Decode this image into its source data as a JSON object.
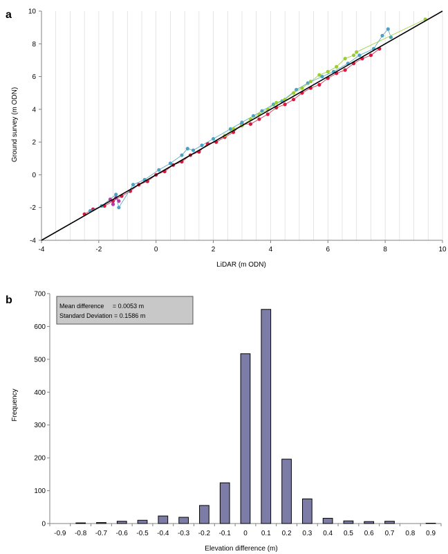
{
  "panels": {
    "a": {
      "label": "a"
    },
    "b": {
      "label": "b"
    }
  },
  "colors": {
    "red": "#d7193f",
    "blue": "#4aa3c4",
    "green": "#9acd32",
    "magenta": "#b23aa8",
    "line": "#000000",
    "bar_fill": "#7c7ca6",
    "bar_stroke": "#000000",
    "stats_box": "#c8c8c8"
  },
  "chart_data": [
    {
      "type": "scatter",
      "panel": "a",
      "title": "",
      "xlabel": "LiDAR (m ODN)",
      "ylabel": "Ground survey (m ODN)",
      "xlim": [
        -4,
        10
      ],
      "ylim": [
        -4,
        10
      ],
      "x_ticks": [
        "-4",
        "-2",
        "0",
        "2",
        "4",
        "6",
        "8",
        "10"
      ],
      "y_ticks": [
        "-4",
        "-2",
        "0",
        "2",
        "4",
        "6",
        "8",
        "10"
      ],
      "grid": "vertical",
      "reference_line": {
        "x": [
          -4,
          10
        ],
        "y": [
          -4,
          10
        ]
      },
      "series": [
        {
          "color_key": "red",
          "x": [
            -2.5,
            -2.2,
            -1.8,
            -1.5,
            -1.2,
            -0.9,
            -0.6,
            -0.3,
            0.0,
            0.3,
            0.6,
            0.9,
            1.2,
            1.5,
            1.8,
            2.1,
            2.4,
            2.7,
            3.0,
            3.3,
            3.6,
            3.9,
            4.2,
            4.5,
            4.8,
            5.1,
            5.4,
            5.7,
            6.0,
            6.3,
            6.6,
            6.9,
            7.2,
            7.5,
            7.8
          ],
          "y": [
            -2.4,
            -2.1,
            -1.9,
            -1.6,
            -1.3,
            -1.0,
            -0.6,
            -0.4,
            0.0,
            0.2,
            0.6,
            0.8,
            1.2,
            1.4,
            1.9,
            2.0,
            2.3,
            2.6,
            3.1,
            3.1,
            3.4,
            3.7,
            4.1,
            4.3,
            4.6,
            5.0,
            5.3,
            5.5,
            5.9,
            6.2,
            6.4,
            6.8,
            7.1,
            7.3,
            7.7
          ]
        },
        {
          "color_key": "blue",
          "x": [
            -2.3,
            -1.9,
            -1.4,
            -1.3,
            -0.8,
            -0.4,
            0.1,
            0.5,
            0.9,
            1.1,
            1.3,
            1.6,
            2.0,
            2.6,
            3.0,
            3.4,
            3.7,
            4.1,
            4.4,
            4.9,
            5.3,
            5.8,
            6.2,
            6.7,
            7.1,
            7.6,
            7.9,
            8.1,
            8.2
          ],
          "y": [
            -2.2,
            -1.9,
            -1.2,
            -2.0,
            -0.6,
            -0.3,
            0.3,
            0.7,
            1.2,
            1.6,
            1.5,
            1.8,
            2.2,
            2.8,
            3.2,
            3.6,
            3.9,
            4.3,
            4.5,
            5.2,
            5.6,
            6.0,
            6.3,
            6.8,
            7.3,
            7.7,
            8.5,
            8.9,
            8.4
          ]
        },
        {
          "color_key": "green",
          "x": [
            2.4,
            2.7,
            3.0,
            3.3,
            3.6,
            3.9,
            4.2,
            4.5,
            4.8,
            5.1,
            5.4,
            5.7,
            6.0,
            6.3,
            6.6,
            6.9,
            7.0,
            9.4
          ],
          "y": [
            2.4,
            2.8,
            3.0,
            3.4,
            3.7,
            4.0,
            4.4,
            4.6,
            5.0,
            5.3,
            5.7,
            6.1,
            6.3,
            6.6,
            7.1,
            7.3,
            7.5,
            9.5
          ]
        },
        {
          "color_key": "magenta",
          "x": [
            -1.6,
            -1.5,
            -1.4,
            -1.3
          ],
          "y": [
            -1.5,
            -1.8,
            -1.4,
            -1.6
          ]
        }
      ]
    },
    {
      "type": "bar",
      "panel": "b",
      "title": "",
      "xlabel": "Elevation difference (m)",
      "ylabel": "Frequency",
      "ylim": [
        0,
        700
      ],
      "y_ticks": [
        "0",
        "100",
        "200",
        "300",
        "400",
        "500",
        "600",
        "700"
      ],
      "categories": [
        "-0.9",
        "-0.8",
        "-0.7",
        "-0.6",
        "-0.5",
        "-0.4",
        "-0.3",
        "-0.2",
        "-0.1",
        "0",
        "0.1",
        "0.2",
        "0.3",
        "0.4",
        "0.5",
        "0.6",
        "0.7",
        "0.8",
        "0.9"
      ],
      "values": [
        0,
        2,
        3,
        7,
        10,
        23,
        19,
        55,
        124,
        517,
        652,
        196,
        75,
        16,
        8,
        6,
        7,
        0,
        1
      ],
      "grid": "none",
      "annotation": {
        "line1": "Mean difference     = 0.0053 m",
        "line2": "Standard Deviation = 0.1586 m"
      }
    }
  ]
}
